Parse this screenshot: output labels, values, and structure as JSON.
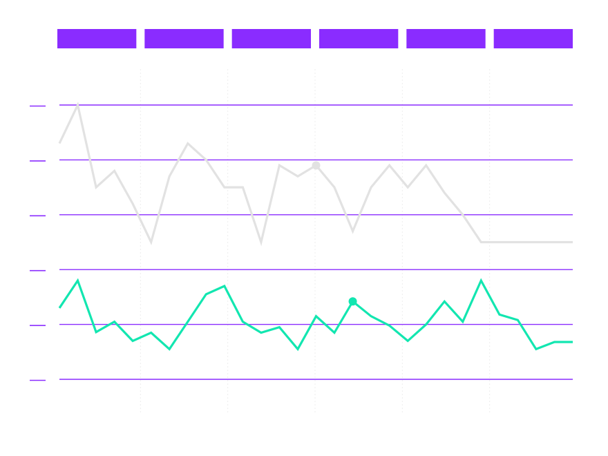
{
  "colors": {
    "accent": "#8a2cff",
    "series_gray": "#e2e2e2",
    "series_teal": "#12e6b0",
    "vgrid": "#eeeeee"
  },
  "header": {
    "segments": 6
  },
  "chart_data": {
    "type": "line",
    "title": "",
    "xlabel": "",
    "ylabel": "",
    "xlim": [
      0,
      28
    ],
    "ylim": [
      0,
      5
    ],
    "yticks": [
      0,
      1,
      2,
      3,
      4,
      5
    ],
    "grid": {
      "horizontal": true,
      "vertical": true
    },
    "x": [
      0,
      1,
      2,
      3,
      4,
      5,
      6,
      7,
      8,
      9,
      10,
      11,
      12,
      13,
      14,
      15,
      16,
      17,
      18,
      19,
      20,
      21,
      22,
      23,
      24,
      25,
      26,
      27,
      28
    ],
    "series": [
      {
        "key": "gray",
        "values": [
          4.3,
          5.0,
          3.5,
          3.8,
          3.2,
          2.5,
          3.7,
          4.3,
          4.0,
          3.5,
          3.5,
          2.5,
          3.9,
          3.7,
          3.9,
          3.5,
          2.7,
          3.5,
          3.9,
          3.5,
          3.9,
          3.4,
          3.0,
          2.5,
          2.5,
          2.5,
          2.5,
          2.5,
          2.5
        ],
        "highlight_index": 14
      },
      {
        "key": "teal",
        "values": [
          1.3,
          1.8,
          0.86,
          1.05,
          0.7,
          0.85,
          0.55,
          1.05,
          1.55,
          1.7,
          1.05,
          0.85,
          0.95,
          0.55,
          1.15,
          0.85,
          1.42,
          1.15,
          0.98,
          0.7,
          1.0,
          1.42,
          1.05,
          1.8,
          1.18,
          1.08,
          0.55,
          0.68,
          0.68
        ],
        "highlight_index": 16
      }
    ]
  }
}
